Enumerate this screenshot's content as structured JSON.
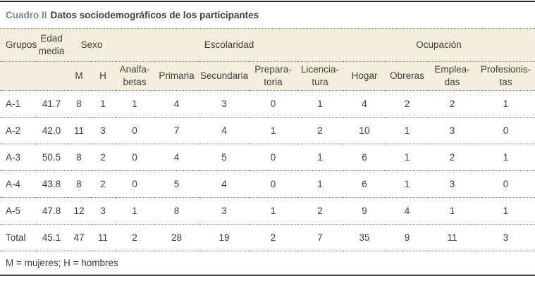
{
  "title": {
    "prefix": "Cuadro II",
    "text": "Datos sociodemográficos de los participantes"
  },
  "table": {
    "type": "table",
    "header_row1": [
      {
        "label": "Grupos",
        "colspan": 1,
        "align": "left"
      },
      {
        "label": "Edad\nmedia",
        "colspan": 1
      },
      {
        "label": "Sexo",
        "colspan": 2
      },
      {
        "label": "Escolaridad",
        "colspan": 5
      },
      {
        "label": "Ocupación",
        "colspan": 4
      }
    ],
    "header_row2": [
      "",
      "",
      "M",
      "H",
      "Analfa-\nbetas",
      "Primaria",
      "Secundaria",
      "Prepara-\ntoria",
      "Licencia-\ntura",
      "Hogar",
      "Obreras",
      "Emplea-\ndas",
      "Profesionis-\ntas"
    ],
    "rows": [
      [
        "A-1",
        "41.7",
        "8",
        "1",
        "1",
        "4",
        "3",
        "0",
        "1",
        "4",
        "2",
        "2",
        "1"
      ],
      [
        "A-2",
        "42.0",
        "11",
        "3",
        "0",
        "7",
        "4",
        "1",
        "2",
        "10",
        "1",
        "3",
        "0"
      ],
      [
        "A-3",
        "50.5",
        "8",
        "2",
        "0",
        "4",
        "5",
        "0",
        "1",
        "6",
        "1",
        "2",
        "1"
      ],
      [
        "A-4",
        "43.8",
        "8",
        "2",
        "0",
        "5",
        "4",
        "0",
        "1",
        "6",
        "1",
        "3",
        "0"
      ],
      [
        "A-5",
        "47.8",
        "12",
        "3",
        "1",
        "8",
        "3",
        "1",
        "2",
        "9",
        "4",
        "1",
        "1"
      ],
      [
        "Total",
        "45.1",
        "47",
        "11",
        "2",
        "28",
        "19",
        "2",
        "7",
        "35",
        "9",
        "11",
        "3"
      ]
    ]
  },
  "footnote": "M = mujeres; H = hombres",
  "colors": {
    "header_background": "#f4efdc",
    "title_accent": "#7a8795",
    "text": "#3e3e3e",
    "top_rule": "#222222",
    "bottom_rule": "#4a4a4a",
    "dotted_rule": "#808080"
  }
}
